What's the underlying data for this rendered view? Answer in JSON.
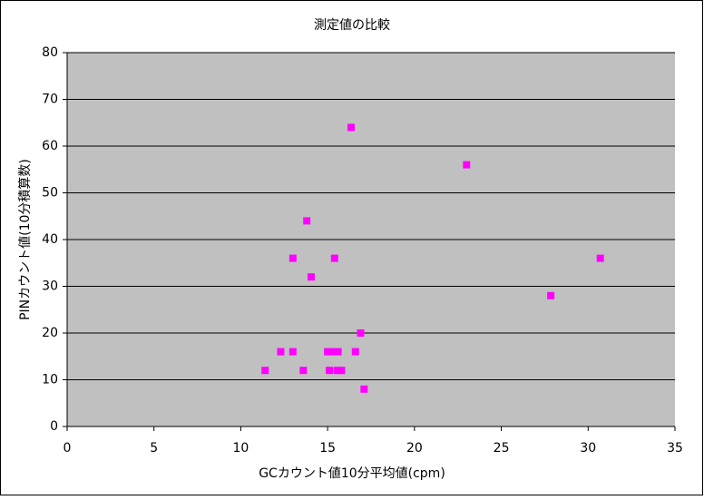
{
  "chart_data": {
    "type": "scatter",
    "title": "測定値の比較",
    "x_label": "GCカウント値10分平均値(cpm)",
    "y_label": "PINカウント値(10分積算数)",
    "series": [
      {
        "color": "#ff00ff",
        "x": [
          11.4,
          12.3,
          13.0,
          13.0,
          13.6,
          13.8,
          14.05,
          15.0,
          15.1,
          15.3,
          15.4,
          15.6,
          15.55,
          15.8,
          16.35,
          16.6,
          16.9,
          17.1,
          23.0,
          27.85,
          30.7
        ],
        "values": [
          12,
          16,
          16,
          36,
          12,
          44,
          32,
          16,
          12,
          16,
          36,
          16,
          12,
          12,
          64,
          16,
          20,
          8,
          56,
          28,
          36
        ]
      }
    ],
    "xlim": [
      0,
      35
    ],
    "xticks": [
      0,
      5,
      10,
      15,
      20,
      25,
      30,
      35
    ],
    "ylim": [
      0,
      80
    ],
    "yticks": [
      0,
      10,
      20,
      30,
      40,
      50,
      60,
      70,
      80
    ],
    "grid": true
  }
}
